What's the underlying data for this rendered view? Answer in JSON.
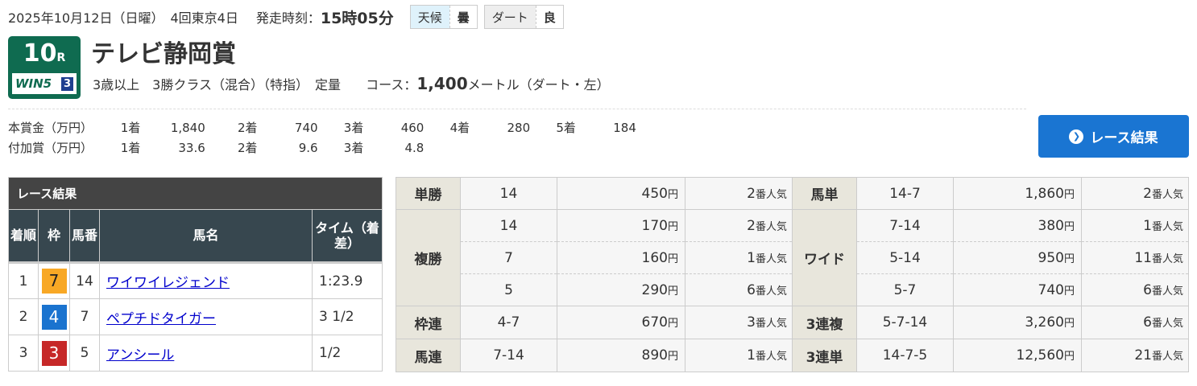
{
  "header": {
    "date": "2025年10月12日（日曜）",
    "meeting": "4回東京4日",
    "start_label": "発走時刻：",
    "start_time": "15時05分",
    "weather_label": "天候",
    "weather": "曇",
    "surface_label": "ダート",
    "condition": "良"
  },
  "race": {
    "number": "10",
    "r": "R",
    "win5_label": "WIN5",
    "win5_leg": "3",
    "name": "テレビ静岡賞",
    "conditions": "3歳以上　3勝クラス（混合）（特指）　定量",
    "course_label": "コース：",
    "distance": "1,400",
    "distance_unit": "メートル（ダート・左）"
  },
  "prize": {
    "main_label": "本賞金（万円）",
    "main": [
      [
        "1着",
        "1,840"
      ],
      [
        "2着",
        "740"
      ],
      [
        "3着",
        "460"
      ],
      [
        "4着",
        "280"
      ],
      [
        "5着",
        "184"
      ]
    ],
    "added_label": "付加賞（万円）",
    "added": [
      [
        "1着",
        "33.6"
      ],
      [
        "2着",
        "9.6"
      ],
      [
        "3着",
        "4.8"
      ]
    ]
  },
  "result_button": "レース結果",
  "results": {
    "caption": "レース結果",
    "headers": [
      "着順",
      "枠",
      "馬番",
      "馬名",
      "タイム（着差）"
    ],
    "rows": [
      {
        "pos": "1",
        "waku": "7",
        "waku_color": "#f8a825",
        "num": "14",
        "name": "ワイワイレジェンド",
        "time": "1:23.9"
      },
      {
        "pos": "2",
        "waku": "4",
        "waku_color": "#1a73cf",
        "num": "7",
        "name": "ペプチドタイガー",
        "time": "3 1/2"
      },
      {
        "pos": "3",
        "waku": "3",
        "waku_color": "#c62828",
        "num": "5",
        "name": "アンシール",
        "time": "1/2"
      }
    ]
  },
  "payouts": {
    "yen": "円",
    "pop": "番人気",
    "tansho": {
      "label": "単勝",
      "rows": [
        [
          "14",
          "450",
          "2"
        ]
      ]
    },
    "fukusho": {
      "label": "複勝",
      "rows": [
        [
          "14",
          "170",
          "2"
        ],
        [
          "7",
          "160",
          "1"
        ],
        [
          "5",
          "290",
          "6"
        ]
      ]
    },
    "wakuren": {
      "label": "枠連",
      "rows": [
        [
          "4-7",
          "670",
          "3"
        ]
      ]
    },
    "umaren": {
      "label": "馬連",
      "rows": [
        [
          "7-14",
          "890",
          "1"
        ]
      ]
    },
    "umatan": {
      "label": "馬単",
      "rows": [
        [
          "14-7",
          "1,860",
          "2"
        ]
      ]
    },
    "wide": {
      "label": "ワイド",
      "rows": [
        [
          "7-14",
          "380",
          "1"
        ],
        [
          "5-14",
          "950",
          "11"
        ],
        [
          "5-7",
          "740",
          "6"
        ]
      ]
    },
    "sanrenpuku": {
      "label": "3連複",
      "rows": [
        [
          "5-7-14",
          "3,260",
          "6"
        ]
      ]
    },
    "sanrentan": {
      "label": "3連単",
      "rows": [
        [
          "14-7-5",
          "12,560",
          "21"
        ]
      ]
    }
  }
}
